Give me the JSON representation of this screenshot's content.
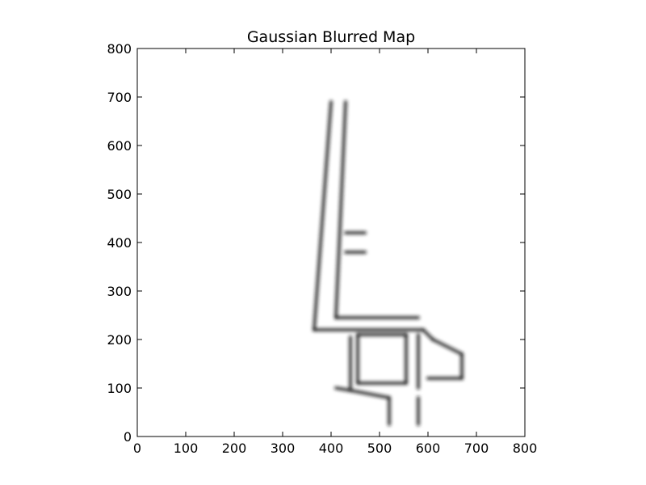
{
  "figure": {
    "title": "Gaussian Blurred Map"
  },
  "chart_data": {
    "type": "heatmap",
    "title": "Gaussian Blurred Map",
    "xlabel": "",
    "ylabel": "",
    "xlim": [
      0,
      800
    ],
    "ylim": [
      0,
      800
    ],
    "x_ticks": [
      0,
      100,
      200,
      300,
      400,
      500,
      600,
      700,
      800
    ],
    "y_ticks": [
      0,
      100,
      200,
      300,
      400,
      500,
      600,
      700,
      800
    ],
    "x_tick_labels": [
      "0",
      "100",
      "200",
      "300",
      "400",
      "500",
      "600",
      "700",
      "800"
    ],
    "y_tick_labels": [
      "0",
      "100",
      "200",
      "300",
      "400",
      "500",
      "600",
      "700",
      "800"
    ],
    "colormap": "gray (white background, dark walls)",
    "grid": false,
    "walls": [
      {
        "from": [
          400,
          690
        ],
        "to": [
          365,
          220
        ]
      },
      {
        "from": [
          430,
          690
        ],
        "to": [
          410,
          245
        ]
      },
      {
        "from": [
          365,
          220
        ],
        "to": [
          590,
          220
        ]
      },
      {
        "from": [
          410,
          245
        ],
        "to": [
          580,
          245
        ]
      },
      {
        "from": [
          440,
          205
        ],
        "to": [
          440,
          100
        ]
      },
      {
        "from": [
          455,
          210
        ],
        "to": [
          455,
          110
        ]
      },
      {
        "from": [
          455,
          210
        ],
        "to": [
          555,
          210
        ]
      },
      {
        "from": [
          555,
          210
        ],
        "to": [
          555,
          110
        ]
      },
      {
        "from": [
          455,
          110
        ],
        "to": [
          555,
          110
        ]
      },
      {
        "from": [
          410,
          100
        ],
        "to": [
          440,
          95
        ]
      },
      {
        "from": [
          440,
          95
        ],
        "to": [
          520,
          80
        ]
      },
      {
        "from": [
          520,
          80
        ],
        "to": [
          520,
          25
        ]
      },
      {
        "from": [
          580,
          80
        ],
        "to": [
          580,
          25
        ]
      },
      {
        "from": [
          580,
          210
        ],
        "to": [
          580,
          100
        ]
      },
      {
        "from": [
          590,
          220
        ],
        "to": [
          610,
          200
        ]
      },
      {
        "from": [
          610,
          200
        ],
        "to": [
          670,
          170
        ]
      },
      {
        "from": [
          670,
          170
        ],
        "to": [
          670,
          120
        ]
      },
      {
        "from": [
          600,
          120
        ],
        "to": [
          670,
          120
        ]
      },
      {
        "from": [
          430,
          420
        ],
        "to": [
          470,
          420
        ]
      },
      {
        "from": [
          430,
          380
        ],
        "to": [
          470,
          380
        ]
      }
    ]
  }
}
